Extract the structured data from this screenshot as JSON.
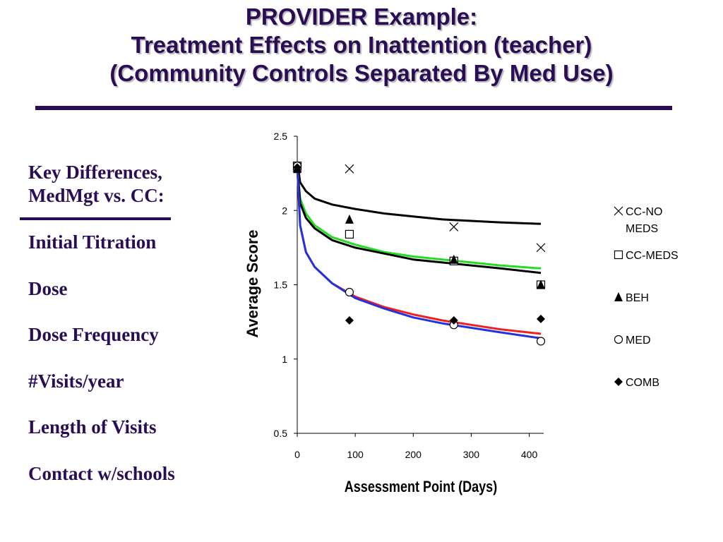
{
  "slide": {
    "title_lines": [
      "PROVIDER Example:",
      "Treatment Effects on Inattention (teacher)",
      "(Community Controls Separated By Med Use)"
    ],
    "key_heading_lines": [
      "Key Differences,",
      "MedMgt vs. CC:"
    ],
    "key_items": [
      "Initial Titration",
      "Dose",
      "Dose Frequency",
      "#Visits/year",
      "Length of Visits",
      "Contact w/schools"
    ],
    "colors": {
      "title": "#2a0d55",
      "rule": "#2a0d55"
    }
  },
  "chart_data": {
    "type": "scatter",
    "xlabel": "Assessment Point (Days)",
    "ylabel": "Average Score",
    "xlim": [
      0,
      420
    ],
    "ylim": [
      0.5,
      2.5
    ],
    "xticks": [
      0,
      100,
      200,
      300,
      400
    ],
    "yticks": [
      0.5,
      1,
      1.5,
      2,
      2.5
    ],
    "ytick_labels": [
      "0.5",
      "1",
      "1.5",
      "2",
      "2.5"
    ],
    "grid": false,
    "legend_position": "right",
    "series": [
      {
        "name": "CC-NO MEDS",
        "legend_lines": [
          "CC-NO",
          "MEDS"
        ],
        "marker": "x-mark",
        "points": [
          [
            0,
            2.29
          ],
          [
            90,
            2.28
          ],
          [
            270,
            1.89
          ],
          [
            420,
            1.75
          ]
        ]
      },
      {
        "name": "CC-MEDS",
        "legend_lines": [
          "CC-MEDS"
        ],
        "marker": "open-square",
        "points": [
          [
            0,
            2.3
          ],
          [
            90,
            1.84
          ],
          [
            270,
            1.66
          ],
          [
            420,
            1.5
          ]
        ]
      },
      {
        "name": "BEH",
        "legend_lines": [
          "BEH"
        ],
        "marker": "filled-triangle",
        "points": [
          [
            0,
            2.28
          ],
          [
            90,
            1.94
          ],
          [
            270,
            1.67
          ],
          [
            420,
            1.5
          ]
        ]
      },
      {
        "name": "MED",
        "legend_lines": [
          "MED"
        ],
        "marker": "open-circle",
        "points": [
          [
            0,
            2.3
          ],
          [
            90,
            1.45
          ],
          [
            270,
            1.23
          ],
          [
            420,
            1.12
          ]
        ]
      },
      {
        "name": "COMB",
        "legend_lines": [
          "COMB"
        ],
        "marker": "filled-diamond",
        "points": [
          [
            0,
            2.29
          ],
          [
            90,
            1.26
          ],
          [
            270,
            1.26
          ],
          [
            420,
            1.27
          ]
        ]
      }
    ],
    "fit_curves": [
      {
        "color": "#000000",
        "points": [
          [
            0,
            2.33
          ],
          [
            5,
            2.19
          ],
          [
            15,
            2.13
          ],
          [
            30,
            2.08
          ],
          [
            60,
            2.04
          ],
          [
            100,
            2.01
          ],
          [
            150,
            1.98
          ],
          [
            200,
            1.96
          ],
          [
            250,
            1.94
          ],
          [
            300,
            1.93
          ],
          [
            350,
            1.92
          ],
          [
            420,
            1.91
          ]
        ]
      },
      {
        "color": "#22dd22",
        "points": [
          [
            0,
            2.3
          ],
          [
            5,
            2.08
          ],
          [
            15,
            1.98
          ],
          [
            30,
            1.9
          ],
          [
            60,
            1.82
          ],
          [
            100,
            1.77
          ],
          [
            150,
            1.72
          ],
          [
            200,
            1.69
          ],
          [
            250,
            1.67
          ],
          [
            300,
            1.65
          ],
          [
            350,
            1.63
          ],
          [
            420,
            1.61
          ]
        ]
      },
      {
        "color": "#000000",
        "points": [
          [
            0,
            2.3
          ],
          [
            5,
            2.05
          ],
          [
            15,
            1.95
          ],
          [
            30,
            1.88
          ],
          [
            60,
            1.8
          ],
          [
            100,
            1.75
          ],
          [
            150,
            1.71
          ],
          [
            200,
            1.67
          ],
          [
            250,
            1.65
          ],
          [
            300,
            1.63
          ],
          [
            350,
            1.61
          ],
          [
            420,
            1.58
          ]
        ]
      },
      {
        "color": "#ee2222",
        "points": [
          [
            0,
            2.3
          ],
          [
            5,
            1.9
          ],
          [
            15,
            1.72
          ],
          [
            30,
            1.62
          ],
          [
            60,
            1.51
          ],
          [
            100,
            1.42
          ],
          [
            150,
            1.35
          ],
          [
            200,
            1.3
          ],
          [
            250,
            1.26
          ],
          [
            300,
            1.23
          ],
          [
            350,
            1.2
          ],
          [
            420,
            1.17
          ]
        ]
      },
      {
        "color": "#2233dd",
        "points": [
          [
            0,
            2.3
          ],
          [
            5,
            1.9
          ],
          [
            15,
            1.72
          ],
          [
            30,
            1.62
          ],
          [
            60,
            1.51
          ],
          [
            100,
            1.41
          ],
          [
            150,
            1.34
          ],
          [
            200,
            1.28
          ],
          [
            250,
            1.24
          ],
          [
            300,
            1.21
          ],
          [
            350,
            1.18
          ],
          [
            420,
            1.14
          ]
        ]
      }
    ]
  }
}
